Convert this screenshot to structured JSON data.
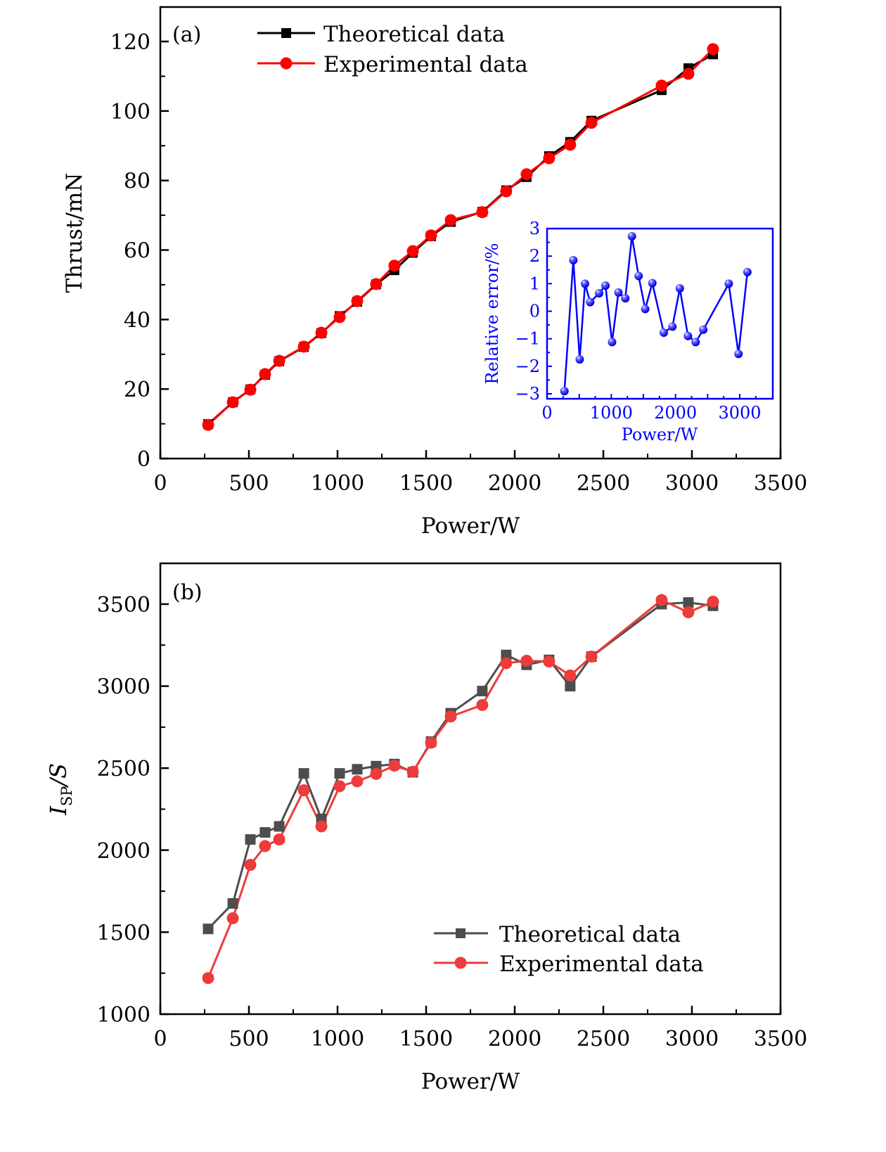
{
  "chart_data": [
    {
      "type": "line",
      "panel_label": "(a)",
      "title": "",
      "xlabel": "Power/W",
      "ylabel": "Thrust/mN",
      "xlim": [
        0,
        3500
      ],
      "ylim": [
        0,
        125
      ],
      "xticks": [
        0,
        500,
        1000,
        1500,
        2000,
        2500,
        3000,
        3500
      ],
      "yticks": [
        0,
        20,
        40,
        60,
        80,
        100,
        120
      ],
      "xtick_labels": [
        "0",
        "500",
        "1000",
        "1500",
        "2000",
        "2500",
        "3000",
        "3500"
      ],
      "ytick_labels": [
        "0",
        "20",
        "40",
        "60",
        "80",
        "100",
        "120"
      ],
      "grid": false,
      "legend_position": "top-left",
      "x": [
        270,
        409,
        508,
        591,
        671,
        810,
        909,
        1012,
        1111,
        1218,
        1321,
        1425,
        1528,
        1639,
        1817,
        1952,
        2067,
        2194,
        2313,
        2433,
        2829,
        2980,
        3119
      ],
      "series": [
        {
          "name": "Theoretical data",
          "color": "#000000",
          "marker": "square",
          "values": [
            9.9,
            16.2,
            19.9,
            24.1,
            28.0,
            32.1,
            36.1,
            41.0,
            45.1,
            50.1,
            54.2,
            59.2,
            64.0,
            68.1,
            71.0,
            77.2,
            81.0,
            87.0,
            91.1,
            97.2,
            106.0,
            112.3,
            116.3
          ]
        },
        {
          "name": "Experimental data",
          "color": "#ff0000",
          "marker": "circle",
          "values": [
            9.7,
            16.2,
            19.8,
            24.3,
            28.1,
            32.2,
            36.2,
            40.7,
            45.3,
            50.2,
            55.5,
            59.7,
            64.2,
            68.6,
            70.9,
            76.9,
            81.8,
            86.4,
            90.3,
            96.6,
            107.3,
            110.7,
            117.8
          ]
        }
      ],
      "inset": {
        "type": "line",
        "xlabel": "Power/W",
        "ylabel": "Relative error/%",
        "xlim": [
          0,
          3500
        ],
        "ylim": [
          -3.2,
          3
        ],
        "xticks": [
          0,
          1000,
          2000,
          3000
        ],
        "yticks": [
          -3,
          -2,
          -1,
          0,
          1,
          2,
          3
        ],
        "xtick_labels": [
          "0",
          "1000",
          "2000",
          "3000"
        ],
        "ytick_labels": [
          "−3",
          "−2",
          "−1",
          "0",
          "1",
          "2",
          "3"
        ],
        "color": "#0000ff",
        "marker": "sphere",
        "x": [
          270,
          409,
          508,
          591,
          671,
          810,
          909,
          1012,
          1111,
          1218,
          1321,
          1425,
          1528,
          1639,
          1817,
          1952,
          2067,
          2194,
          2313,
          2433,
          2829,
          2980,
          3119
        ],
        "values": [
          -2.9,
          1.85,
          -1.75,
          1.0,
          0.33,
          0.65,
          0.93,
          -1.12,
          0.68,
          0.47,
          2.72,
          1.28,
          0.08,
          1.02,
          -0.78,
          -0.56,
          0.83,
          -0.9,
          -1.12,
          -0.67,
          1.0,
          -1.55,
          1.42
        ]
      }
    },
    {
      "type": "line",
      "panel_label": "(b)",
      "title": "",
      "xlabel": "Power/W",
      "ylabel": "I_SP/S",
      "ylabel_main": "I",
      "ylabel_sub": "SP",
      "ylabel_rest": "/S",
      "xlim": [
        0,
        3500
      ],
      "ylim": [
        1000,
        3750
      ],
      "xticks": [
        0,
        500,
        1000,
        1500,
        2000,
        2500,
        3000,
        3500
      ],
      "yticks": [
        1000,
        1500,
        2000,
        2500,
        3000,
        3500
      ],
      "xtick_labels": [
        "0",
        "500",
        "1000",
        "1500",
        "2000",
        "2500",
        "3000",
        "3500"
      ],
      "ytick_labels": [
        "1000",
        "1500",
        "2000",
        "2500",
        "3000",
        "3500"
      ],
      "grid": false,
      "legend_position": "bottom-right",
      "x": [
        270,
        409,
        508,
        591,
        671,
        810,
        909,
        1012,
        1111,
        1218,
        1321,
        1425,
        1528,
        1639,
        1817,
        1952,
        2067,
        2194,
        2313,
        2433,
        2829,
        2980,
        3119
      ],
      "series": [
        {
          "name": "Theoretical data",
          "color": "#4d4d4d",
          "marker": "square",
          "values": [
            1520,
            1675,
            2065,
            2108,
            2145,
            2468,
            2190,
            2468,
            2493,
            2512,
            2525,
            2475,
            2662,
            2835,
            2970,
            3190,
            3130,
            3160,
            3000,
            3180,
            3500,
            3510,
            3490
          ]
        },
        {
          "name": "Experimental data",
          "color": "#ee3b3b",
          "marker": "circle",
          "values": [
            1220,
            1585,
            1910,
            2025,
            2065,
            2365,
            2145,
            2390,
            2420,
            2465,
            2515,
            2478,
            2655,
            2815,
            2885,
            3140,
            3155,
            3150,
            3065,
            3180,
            3525,
            3450,
            3515
          ]
        }
      ]
    }
  ]
}
